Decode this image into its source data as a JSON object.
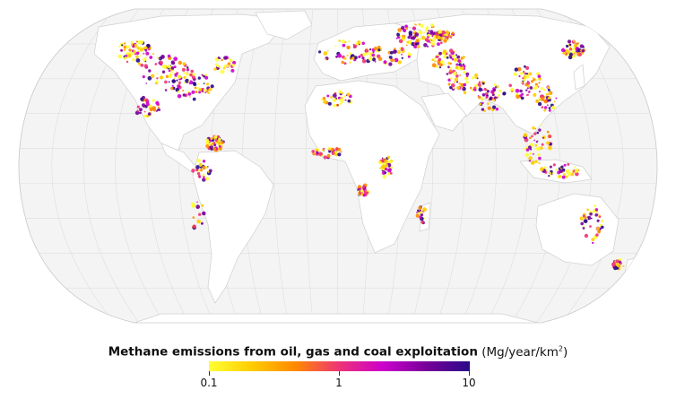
{
  "legend": {
    "title": "Methane emissions from oil, gas and coal exploitation",
    "unit_prefix": "(Mg/year/km",
    "unit_sup": "2",
    "unit_suffix": ")",
    "ticks": [
      "0.1",
      "1",
      "10"
    ],
    "colors": [
      "#ffff33",
      "#ffcc00",
      "#ff8800",
      "#ee3377",
      "#cc00cc",
      "#770099",
      "#2a0a8a"
    ]
  },
  "map": {
    "projection": "Robinson-like",
    "ocean_color": "#f4f4f4",
    "land_color": "#ffffff",
    "graticule": true
  }
}
